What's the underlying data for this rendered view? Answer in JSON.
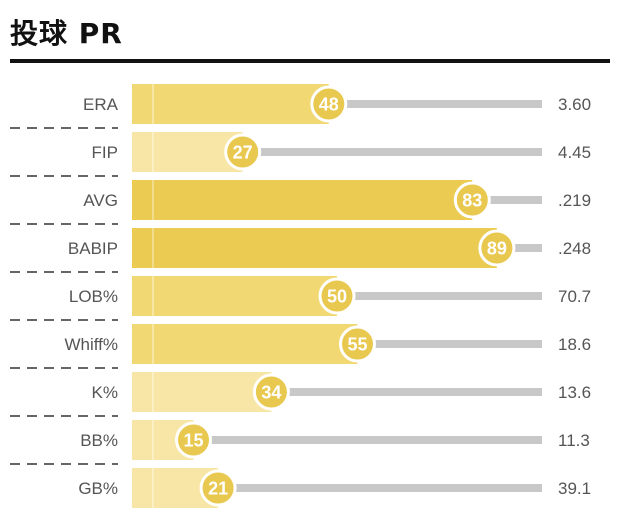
{
  "header": {
    "title": "投球 PR"
  },
  "chart_data": {
    "type": "bar",
    "orientation": "horizontal",
    "title": "投球 PR",
    "categories": [
      "ERA",
      "FIP",
      "AVG",
      "BABIP",
      "LOB%",
      "Whiff%",
      "K%",
      "BB%",
      "GB%"
    ],
    "values": [
      48,
      27,
      83,
      89,
      50,
      55,
      34,
      15,
      21
    ],
    "stat_labels": [
      "3.60",
      "4.45",
      ".219",
      ".248",
      "70.7",
      "18.6",
      "13.6",
      "11.3",
      "39.1"
    ],
    "xlim": [
      0,
      100
    ],
    "grid": false,
    "colors": {
      "bar_low": "#f7e6a6",
      "bar_mid": "#f1d872",
      "bar_high": "#ebcb52",
      "badge": "#e9c84f",
      "track": "#c8c8c8"
    }
  }
}
